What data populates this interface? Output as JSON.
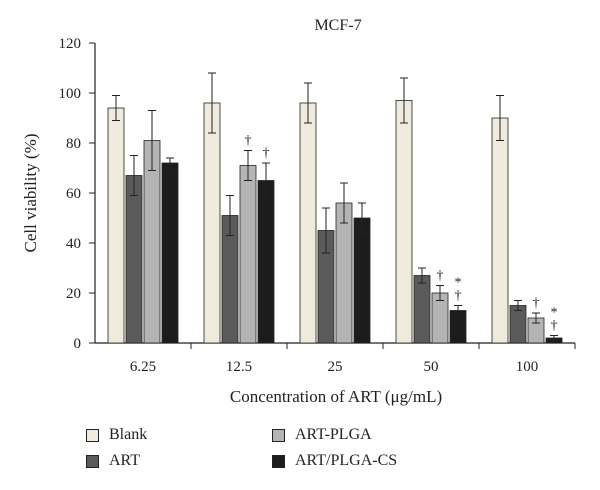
{
  "chart_data": {
    "type": "bar",
    "title": "MCF-7",
    "xlabel": "Concentration of ART (μg/mL)",
    "ylabel": "Cell viability (%)",
    "ylim": [
      0,
      120
    ],
    "yticks": [
      "0",
      "20",
      "40",
      "60",
      "80",
      "100",
      "120"
    ],
    "categories": [
      "6.25",
      "12.5",
      "25",
      "50",
      "100"
    ],
    "series": [
      {
        "name": "Blank",
        "color": "#efeadc",
        "values": [
          94,
          96,
          96,
          97,
          90
        ],
        "errors": [
          5,
          12,
          8,
          9,
          9
        ]
      },
      {
        "name": "ART",
        "color": "#5a5a5a",
        "values": [
          67,
          51,
          45,
          27,
          15
        ],
        "errors": [
          8,
          8,
          9,
          3,
          2
        ]
      },
      {
        "name": "ART-PLGA",
        "color": "#b4b4b4",
        "values": [
          81,
          71,
          56,
          20,
          10
        ],
        "errors": [
          12,
          6,
          8,
          3,
          2
        ]
      },
      {
        "name": "ART/PLGA-CS",
        "color": "#1c1c1c",
        "values": [
          72,
          65,
          50,
          13,
          2
        ],
        "errors": [
          2,
          7,
          6,
          2,
          1
        ]
      }
    ],
    "annotations": [
      {
        "category": "12.5",
        "series": "ART-PLGA",
        "text": "†"
      },
      {
        "category": "12.5",
        "series": "ART/PLGA-CS",
        "text": "†"
      },
      {
        "category": "50",
        "series": "ART-PLGA",
        "text": "†"
      },
      {
        "category": "50",
        "series": "ART/PLGA-CS",
        "text": "* †"
      },
      {
        "category": "100",
        "series": "ART-PLGA",
        "text": "†"
      },
      {
        "category": "100",
        "series": "ART/PLGA-CS",
        "text": "* †"
      }
    ],
    "legend": {
      "placement": "bottom"
    }
  }
}
